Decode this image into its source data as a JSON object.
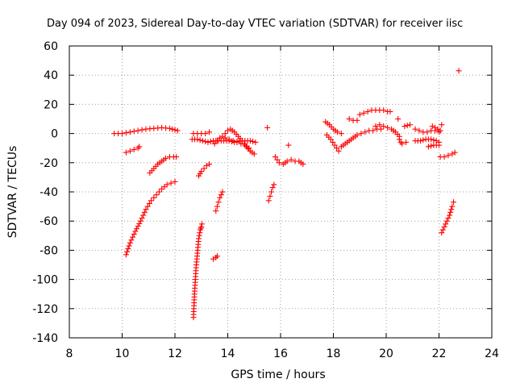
{
  "chart_data": {
    "type": "scatter",
    "title": "Day 094 of 2023, Sidereal Day-to-day VTEC variation (SDTVAR) for receiver iisc",
    "xlabel": "GPS time / hours",
    "ylabel": "SDTVAR / TECUs",
    "xlim": [
      8,
      24
    ],
    "ylim": [
      -140,
      60
    ],
    "xticks": [
      8,
      10,
      12,
      14,
      16,
      18,
      20,
      22,
      24
    ],
    "yticks": [
      -140,
      -120,
      -100,
      -80,
      -60,
      -40,
      -20,
      0,
      20,
      40,
      60
    ],
    "grid": true,
    "marker": "+",
    "colors": {
      "points": "#ff0000",
      "axes": "#000000",
      "grid": "#a0a0a0"
    },
    "series": [
      {
        "name": "SDTVAR",
        "segments": [
          {
            "x": [
              9.7,
              10.0,
              10.3,
              10.6,
              10.9,
              11.2,
              11.5,
              11.8,
              12.1
            ],
            "y": [
              0,
              0,
              1,
              2,
              3,
              3.5,
              4,
              3.5,
              2
            ]
          },
          {
            "x": [
              10.15,
              10.3,
              10.45,
              10.6,
              10.65
            ],
            "y": [
              -13,
              -12,
              -11,
              -10,
              -9
            ]
          },
          {
            "x": [
              10.15,
              10.3,
              10.5,
              10.7,
              10.9,
              11.1,
              11.3,
              11.5,
              11.7,
              11.85,
              12.0
            ],
            "y": [
              -83,
              -75,
              -67,
              -60,
              -52,
              -46,
              -42,
              -38,
              -35,
              -34,
              -33
            ]
          },
          {
            "x": [
              11.05,
              11.2,
              11.35,
              11.5,
              11.65,
              11.8,
              11.95,
              12.05
            ],
            "y": [
              -27,
              -24,
              -21,
              -19,
              -17,
              -16,
              -16,
              -16
            ]
          },
          {
            "x": [
              12.7,
              12.72,
              12.74,
              12.76,
              12.78,
              12.8,
              12.82,
              12.84,
              12.86,
              12.88,
              12.9,
              12.92,
              12.94,
              12.96,
              12.98,
              13.0,
              13.02
            ],
            "y": [
              -126,
              -118,
              -110,
              -104,
              -98,
              -92,
              -88,
              -84,
              -80,
              -76,
              -72,
              -70,
              -68,
              -66,
              -65,
              -64,
              -62
            ]
          },
          {
            "x": [
              12.9,
              13.0,
              13.1,
              13.2,
              13.3
            ],
            "y": [
              -29,
              -26,
              -24,
              -22,
              -21
            ]
          },
          {
            "x": [
              12.7,
              12.85,
              13.0,
              13.15,
              13.3
            ],
            "y": [
              0,
              0,
              0,
              0,
              1
            ]
          },
          {
            "x": [
              12.65,
              12.85,
              13.05,
              13.25,
              13.45,
              13.65,
              13.85,
              14.05,
              14.25,
              14.45,
              14.65,
              14.85,
              15.05
            ],
            "y": [
              -4,
              -4,
              -5,
              -6,
              -5,
              -5,
              -5,
              -5,
              -6,
              -5,
              -5,
              -5,
              -6
            ]
          },
          {
            "x": [
              13.5,
              13.6,
              13.7,
              13.8,
              13.9,
              14.0,
              14.1,
              14.25,
              14.4,
              14.55,
              14.7,
              14.85,
              15.0
            ],
            "y": [
              -7,
              -5,
              -3,
              -2,
              0,
              2,
              3,
              1,
              -2,
              -5,
              -9,
              -12,
              -14
            ]
          },
          {
            "x": [
              13.9,
              14.05,
              14.2,
              14.35,
              14.5,
              14.65,
              14.8
            ],
            "y": [
              -3,
              -4,
              -5,
              -6,
              -7,
              -8,
              -10
            ]
          },
          {
            "x": [
              13.55,
              13.6,
              13.65,
              13.7,
              13.75,
              13.8
            ],
            "y": [
              -53,
              -50,
              -47,
              -44,
              -42,
              -40
            ]
          },
          {
            "x": [
              13.45,
              13.55,
              13.6
            ],
            "y": [
              -86,
              -85,
              -84
            ]
          },
          {
            "x": [
              15.55,
              15.6,
              15.65,
              15.7,
              15.75
            ],
            "y": [
              -46,
              -43,
              -40,
              -37,
              -35
            ]
          },
          {
            "x": [
              15.5
            ],
            "y": [
              4
            ]
          },
          {
            "x": [
              15.8,
              15.95,
              16.1,
              16.25,
              16.4,
              16.55,
              16.7,
              16.85
            ],
            "y": [
              -16,
              -20,
              -21,
              -19,
              -18,
              -19,
              -19,
              -21
            ]
          },
          {
            "x": [
              16.3
            ],
            "y": [
              -8
            ]
          },
          {
            "x": [
              17.7,
              17.85,
              18.0,
              18.15,
              18.3
            ],
            "y": [
              8,
              6,
              3,
              1,
              0
            ]
          },
          {
            "x": [
              17.75,
              17.9,
              18.05,
              18.2
            ],
            "y": [
              -1,
              -4,
              -8,
              -12
            ]
          },
          {
            "x": [
              18.3,
              18.45,
              18.6,
              18.75,
              18.9,
              19.05,
              19.2,
              19.35,
              19.5,
              19.65,
              19.8
            ],
            "y": [
              -9,
              -7,
              -5,
              -3,
              -1,
              0,
              1,
              2,
              2,
              3,
              3
            ]
          },
          {
            "x": [
              18.6,
              18.75,
              18.9
            ],
            "y": [
              10,
              9,
              9
            ]
          },
          {
            "x": [
              19.0,
              19.15,
              19.3,
              19.45,
              19.6,
              19.75,
              19.9,
              20.05,
              20.15
            ],
            "y": [
              13,
              14,
              15,
              16,
              16,
              16,
              16,
              15,
              15
            ]
          },
          {
            "x": [
              19.6,
              19.75,
              19.9,
              20.05,
              20.2,
              20.35,
              20.5
            ],
            "y": [
              5,
              6,
              5,
              4,
              3,
              1,
              -2
            ]
          },
          {
            "x": [
              20.5,
              20.55,
              20.6
            ],
            "y": [
              -4,
              -6,
              -7
            ]
          },
          {
            "x": [
              20.45
            ],
            "y": [
              10
            ]
          },
          {
            "x": [
              20.7,
              20.9
            ],
            "y": [
              5,
              6
            ]
          },
          {
            "x": [
              20.75
            ],
            "y": [
              -6
            ]
          },
          {
            "x": [
              21.1,
              21.25,
              21.4,
              21.55,
              21.7,
              21.85,
              22.0
            ],
            "y": [
              3,
              2,
              1,
              1,
              2,
              2,
              1
            ]
          },
          {
            "x": [
              21.1,
              21.3,
              21.5,
              21.7,
              21.9,
              22.0
            ],
            "y": [
              -5,
              -5,
              -4,
              -4,
              -5,
              -6
            ]
          },
          {
            "x": [
              21.6,
              21.8,
              22.0
            ],
            "y": [
              -9,
              -8,
              -8
            ]
          },
          {
            "x": [
              21.75,
              21.85,
              21.95,
              22.05
            ],
            "y": [
              5,
              4,
              3,
              2
            ]
          },
          {
            "x": [
              22.05,
              22.2,
              22.35,
              22.5,
              22.6
            ],
            "y": [
              -16,
              -16,
              -15,
              -14,
              -13
            ]
          },
          {
            "x": [
              22.1,
              22.2,
              22.3,
              22.4,
              22.5,
              22.55
            ],
            "y": [
              -68,
              -64,
              -60,
              -56,
              -50,
              -47
            ]
          },
          {
            "x": [
              22.1
            ],
            "y": [
              6
            ]
          },
          {
            "x": [
              22.75
            ],
            "y": [
              43
            ]
          }
        ]
      }
    ]
  }
}
